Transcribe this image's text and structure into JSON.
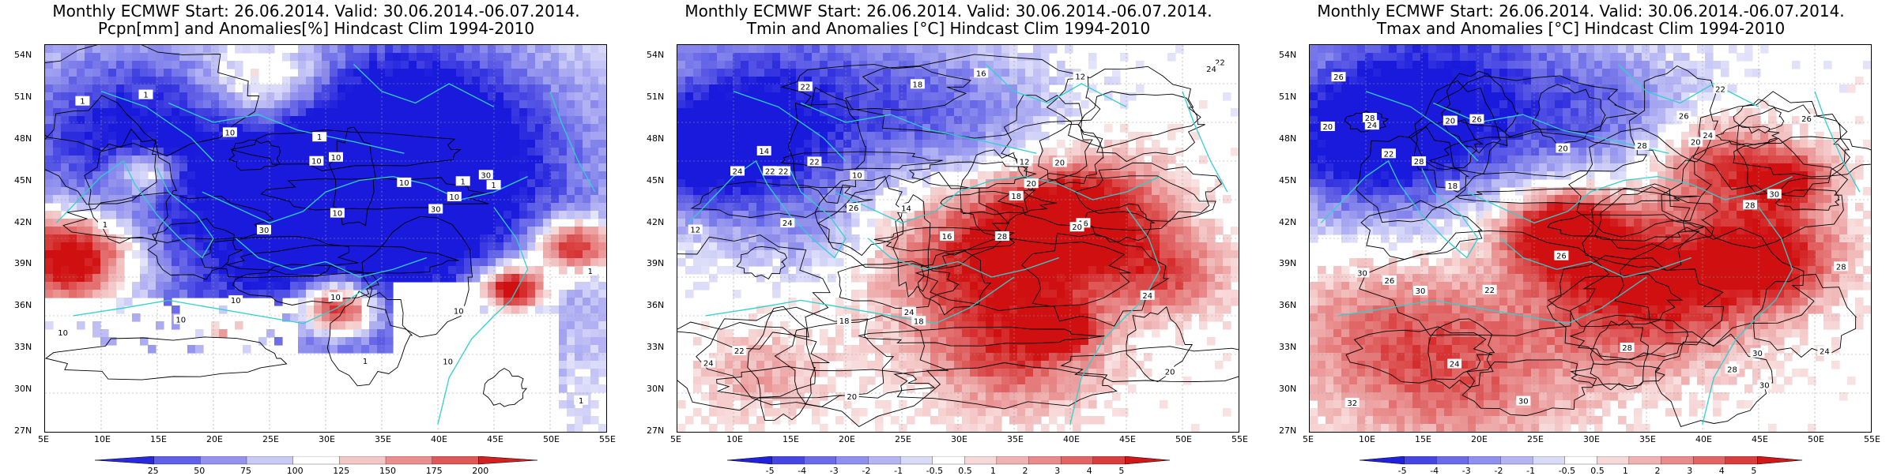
{
  "panels": [
    {
      "title_line1": "Monthly ECMWF Start: 26.06.2014. Valid: 30.06.2014.-06.07.2014.",
      "title_line2": "Pcpn[mm] and Anomalies[%] Hindcast Clim 1994-2010",
      "variable": "precipitation",
      "colorbar_ticks": [
        "25",
        "50",
        "75",
        "100",
        "125",
        "150",
        "175",
        "200"
      ],
      "colors": {
        "low": "#1a1adc",
        "mid": "#ffffff",
        "high": "#d01010"
      }
    },
    {
      "title_line1": "Monthly ECMWF Start: 26.06.2014. Valid: 30.06.2014.-06.07.2014.",
      "title_line2": "Tmin and Anomalies [°C] Hindcast Clim 1994-2010",
      "variable": "tmin",
      "colorbar_ticks": [
        "-5",
        "-4",
        "-3",
        "-2",
        "-1",
        "-0.5",
        "0.5",
        "1",
        "2",
        "3",
        "4",
        "5"
      ],
      "colors": {
        "low": "#1a1adc",
        "mid": "#ffffff",
        "high": "#d01010"
      }
    },
    {
      "title_line1": "Monthly ECMWF Start: 26.06.2014. Valid: 30.06.2014.-06.07.2014.",
      "title_line2": "Tmax and Anomalies [°C] Hindcast Clim 1994-2010",
      "variable": "tmax",
      "colorbar_ticks": [
        "-5",
        "-4",
        "-3",
        "-2",
        "-1",
        "-0.5",
        "0.5",
        "1",
        "2",
        "3",
        "4",
        "5"
      ],
      "colors": {
        "low": "#1a1adc",
        "mid": "#ffffff",
        "high": "#d01010"
      }
    }
  ],
  "lat_labels": [
    "54N",
    "51N",
    "48N",
    "45N",
    "42N",
    "39N",
    "36N",
    "33N",
    "30N",
    "27N"
  ],
  "lon_labels": [
    "5E",
    "10E",
    "15E",
    "20E",
    "25E",
    "30E",
    "35E",
    "40E",
    "45E",
    "50E",
    "55E"
  ],
  "contour_labels": [
    [
      "10",
      "30",
      "30",
      "10",
      "10",
      "10",
      "10",
      "10",
      "1",
      "30",
      "10",
      "1",
      "1",
      "1",
      "1",
      "1",
      "10",
      "1",
      "10",
      "10",
      "10",
      "10",
      "1",
      "1"
    ],
    [
      "12",
      "12",
      "10",
      "14",
      "16",
      "16",
      "18",
      "18",
      "20",
      "20",
      "22",
      "22",
      "24",
      "24",
      "24",
      "22",
      "20",
      "18",
      "16",
      "14",
      "12",
      "20",
      "22",
      "24",
      "20",
      "22",
      "24",
      "26",
      "28",
      "18",
      "22",
      "24"
    ],
    [
      "20",
      "20",
      "20",
      "22",
      "22",
      "24",
      "24",
      "26",
      "26",
      "26",
      "28",
      "28",
      "28",
      "30",
      "30",
      "30",
      "32",
      "30",
      "28",
      "26",
      "24",
      "22",
      "20",
      "18",
      "26",
      "28",
      "30",
      "28",
      "26",
      "24",
      "30",
      "28"
    ]
  ],
  "map_colors": {
    "coast": "#30d0d0",
    "contour": "#000000",
    "grid": "#999999"
  }
}
